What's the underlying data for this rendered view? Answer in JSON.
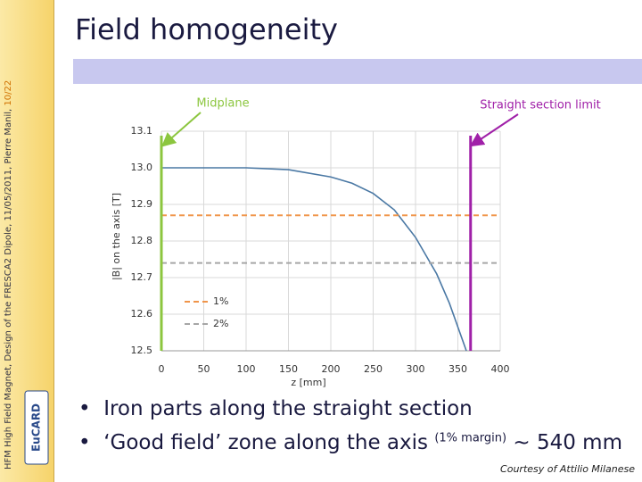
{
  "slide": {
    "title": "Field homogeneity",
    "footer": "HFM High Field Magnet, Design of the FRESCA2 Dipole, 11/05/2011, Pierre Manil,",
    "page": "10/22",
    "logo": "EuCARD",
    "bullets": [
      {
        "text": "Iron parts along the straight section"
      },
      {
        "text": "‘Good field’ zone along the axis",
        "sup": "(1% margin)",
        "tail": "~ 540 mm"
      }
    ],
    "credit": "Courtesy of Attilio Milanese"
  },
  "chart_data": {
    "type": "line",
    "xlabel": "z [mm]",
    "ylabel": "|B| on the axis [T]",
    "xlim": [
      0,
      400
    ],
    "xticks": [
      0,
      50,
      100,
      150,
      200,
      250,
      300,
      350,
      400
    ],
    "ylim": [
      12.5,
      13.1
    ],
    "yticks": [
      12.5,
      12.6,
      12.7,
      12.8,
      12.9,
      {
        "value": 13,
        "label": "13.0"
      },
      13.1
    ],
    "grid": true,
    "series": [
      {
        "color": "#4a78a4",
        "x": [
          0,
          50,
          100,
          150,
          200,
          225,
          250,
          275,
          300,
          325,
          340,
          350,
          360
        ],
        "values": [
          13.0,
          13.0,
          13.0,
          12.995,
          12.975,
          12.958,
          12.93,
          12.885,
          12.81,
          12.71,
          12.63,
          12.565,
          12.5
        ]
      },
      {
        "name": "1%",
        "color": "#f0954a",
        "dashed": true,
        "x": [
          0,
          400
        ],
        "values": [
          12.87,
          12.87
        ]
      },
      {
        "name": "2%",
        "color": "#a6a6a6",
        "dashed": true,
        "x": [
          0,
          400
        ],
        "values": [
          12.74,
          12.74
        ]
      }
    ],
    "markers": [
      {
        "label": "Midplane",
        "x": 0,
        "color": "#8cc63f"
      },
      {
        "label": "Straight section limit",
        "x": 365,
        "color": "#a020a8"
      }
    ]
  }
}
